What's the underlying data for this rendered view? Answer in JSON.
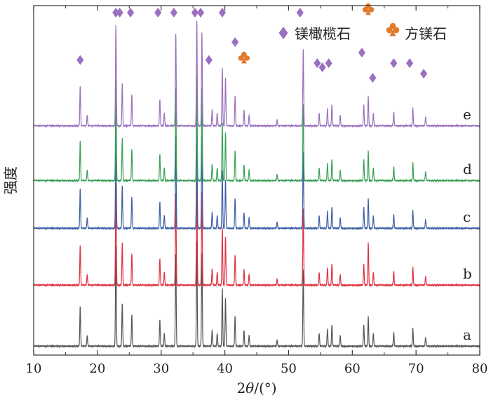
{
  "chart_data": {
    "type": "line",
    "xlabel_parts": {
      "pre": "2",
      "italic": "θ",
      "post": "/(°)"
    },
    "ylabel": "强度",
    "xlim": [
      10,
      80
    ],
    "x_ticks": [
      "10",
      "20",
      "30",
      "40",
      "50",
      "60",
      "70",
      "80"
    ],
    "legend": [
      {
        "marker": "diamond",
        "label": "镁橄榄石",
        "color": "#9b6fc0"
      },
      {
        "marker": "club",
        "label": "方镁石",
        "color": "#e07a2a"
      }
    ],
    "series": [
      {
        "name": "a",
        "color": "#555555",
        "peaks": [
          [
            17.3,
            0.38
          ],
          [
            18.4,
            0.1
          ],
          [
            22.9,
            0.95
          ],
          [
            23.9,
            0.4
          ],
          [
            25.4,
            0.3
          ],
          [
            29.8,
            0.25
          ],
          [
            30.5,
            0.12
          ],
          [
            32.3,
            0.88
          ],
          [
            35.6,
            1.0
          ],
          [
            36.4,
            0.88
          ],
          [
            38.0,
            0.15
          ],
          [
            38.8,
            0.12
          ],
          [
            39.6,
            0.55
          ],
          [
            40.1,
            0.45
          ],
          [
            41.6,
            0.28
          ],
          [
            43.0,
            0.15
          ],
          [
            43.8,
            0.1
          ],
          [
            48.2,
            0.06
          ],
          [
            52.3,
            0.72
          ],
          [
            54.8,
            0.12
          ],
          [
            56.1,
            0.16
          ],
          [
            56.8,
            0.2
          ],
          [
            58.1,
            0.1
          ],
          [
            61.8,
            0.2
          ],
          [
            62.5,
            0.28
          ],
          [
            63.3,
            0.12
          ],
          [
            66.5,
            0.13
          ],
          [
            69.5,
            0.17
          ],
          [
            71.5,
            0.08
          ]
        ]
      },
      {
        "name": "b",
        "color": "#e03040",
        "peaks": [
          [
            17.3,
            0.38
          ],
          [
            18.4,
            0.1
          ],
          [
            22.9,
            0.95
          ],
          [
            23.9,
            0.4
          ],
          [
            25.4,
            0.3
          ],
          [
            29.8,
            0.25
          ],
          [
            30.5,
            0.12
          ],
          [
            32.3,
            0.88
          ],
          [
            35.6,
            1.0
          ],
          [
            36.4,
            0.88
          ],
          [
            38.0,
            0.15
          ],
          [
            38.8,
            0.12
          ],
          [
            39.6,
            0.55
          ],
          [
            40.1,
            0.45
          ],
          [
            41.6,
            0.28
          ],
          [
            43.0,
            0.15
          ],
          [
            43.8,
            0.1
          ],
          [
            48.2,
            0.06
          ],
          [
            52.3,
            0.72
          ],
          [
            54.8,
            0.12
          ],
          [
            56.1,
            0.16
          ],
          [
            56.8,
            0.2
          ],
          [
            58.1,
            0.1
          ],
          [
            61.8,
            0.2
          ],
          [
            62.5,
            0.4
          ],
          [
            63.3,
            0.12
          ],
          [
            66.5,
            0.13
          ],
          [
            69.5,
            0.17
          ],
          [
            71.5,
            0.08
          ]
        ]
      },
      {
        "name": "c",
        "color": "#3c5fa8",
        "peaks": [
          [
            17.3,
            0.38
          ],
          [
            18.4,
            0.1
          ],
          [
            22.9,
            0.95
          ],
          [
            23.9,
            0.4
          ],
          [
            25.4,
            0.3
          ],
          [
            29.8,
            0.25
          ],
          [
            30.5,
            0.12
          ],
          [
            32.3,
            0.88
          ],
          [
            35.6,
            1.0
          ],
          [
            36.4,
            0.88
          ],
          [
            38.0,
            0.15
          ],
          [
            38.8,
            0.12
          ],
          [
            39.6,
            0.55
          ],
          [
            40.1,
            0.45
          ],
          [
            41.6,
            0.28
          ],
          [
            43.0,
            0.15
          ],
          [
            43.8,
            0.1
          ],
          [
            48.2,
            0.06
          ],
          [
            52.3,
            0.72
          ],
          [
            54.8,
            0.12
          ],
          [
            56.1,
            0.16
          ],
          [
            56.8,
            0.2
          ],
          [
            58.1,
            0.1
          ],
          [
            61.8,
            0.2
          ],
          [
            62.5,
            0.28
          ],
          [
            63.3,
            0.12
          ],
          [
            66.5,
            0.13
          ],
          [
            69.5,
            0.17
          ],
          [
            71.5,
            0.08
          ]
        ]
      },
      {
        "name": "d",
        "color": "#3aa055",
        "peaks": [
          [
            17.3,
            0.38
          ],
          [
            18.4,
            0.1
          ],
          [
            22.9,
            0.95
          ],
          [
            23.9,
            0.4
          ],
          [
            25.4,
            0.3
          ],
          [
            29.8,
            0.25
          ],
          [
            30.5,
            0.12
          ],
          [
            32.3,
            0.88
          ],
          [
            35.6,
            1.0
          ],
          [
            36.4,
            0.88
          ],
          [
            38.0,
            0.15
          ],
          [
            38.8,
            0.12
          ],
          [
            39.6,
            0.55
          ],
          [
            40.1,
            0.45
          ],
          [
            41.6,
            0.28
          ],
          [
            43.0,
            0.15
          ],
          [
            43.8,
            0.1
          ],
          [
            48.2,
            0.06
          ],
          [
            52.3,
            0.72
          ],
          [
            54.8,
            0.12
          ],
          [
            56.1,
            0.16
          ],
          [
            56.8,
            0.2
          ],
          [
            58.1,
            0.1
          ],
          [
            61.8,
            0.2
          ],
          [
            62.5,
            0.28
          ],
          [
            63.3,
            0.12
          ],
          [
            66.5,
            0.13
          ],
          [
            69.5,
            0.17
          ],
          [
            71.5,
            0.08
          ]
        ]
      },
      {
        "name": "e",
        "color": "#9b6fc0",
        "peaks": [
          [
            17.3,
            0.38
          ],
          [
            18.4,
            0.1
          ],
          [
            22.9,
            0.95
          ],
          [
            23.9,
            0.4
          ],
          [
            25.4,
            0.3
          ],
          [
            29.8,
            0.25
          ],
          [
            30.5,
            0.12
          ],
          [
            32.3,
            0.88
          ],
          [
            35.6,
            1.0
          ],
          [
            36.4,
            0.88
          ],
          [
            38.0,
            0.15
          ],
          [
            38.8,
            0.12
          ],
          [
            39.6,
            0.55
          ],
          [
            40.1,
            0.45
          ],
          [
            41.6,
            0.28
          ],
          [
            43.0,
            0.15
          ],
          [
            43.8,
            0.1
          ],
          [
            48.2,
            0.06
          ],
          [
            52.3,
            0.72
          ],
          [
            54.8,
            0.12
          ],
          [
            56.1,
            0.16
          ],
          [
            56.8,
            0.2
          ],
          [
            58.1,
            0.1
          ],
          [
            61.8,
            0.2
          ],
          [
            62.5,
            0.28
          ],
          [
            63.3,
            0.12
          ],
          [
            66.5,
            0.13
          ],
          [
            69.5,
            0.17
          ],
          [
            71.5,
            0.08
          ]
        ]
      }
    ],
    "annotations": {
      "forsterite_diamonds": [
        [
          17.3,
          0.55
        ],
        [
          22.9,
          1.0
        ],
        [
          23.5,
          1.0
        ],
        [
          25.2,
          1.0
        ],
        [
          29.5,
          1.0
        ],
        [
          32.0,
          1.0
        ],
        [
          35.3,
          1.0
        ],
        [
          36.2,
          1.0
        ],
        [
          37.5,
          0.55
        ],
        [
          39.6,
          1.0
        ],
        [
          41.6,
          0.72
        ],
        [
          51.8,
          1.0
        ],
        [
          54.5,
          0.52
        ],
        [
          55.3,
          0.48
        ],
        [
          56.3,
          0.52
        ],
        [
          61.5,
          0.62
        ],
        [
          63.2,
          0.38
        ],
        [
          66.5,
          0.52
        ],
        [
          69.0,
          0.52
        ],
        [
          71.2,
          0.42
        ]
      ],
      "periclase_clubs": [
        [
          43.0,
          0.52
        ],
        [
          62.5,
          0.98
        ]
      ]
    }
  }
}
